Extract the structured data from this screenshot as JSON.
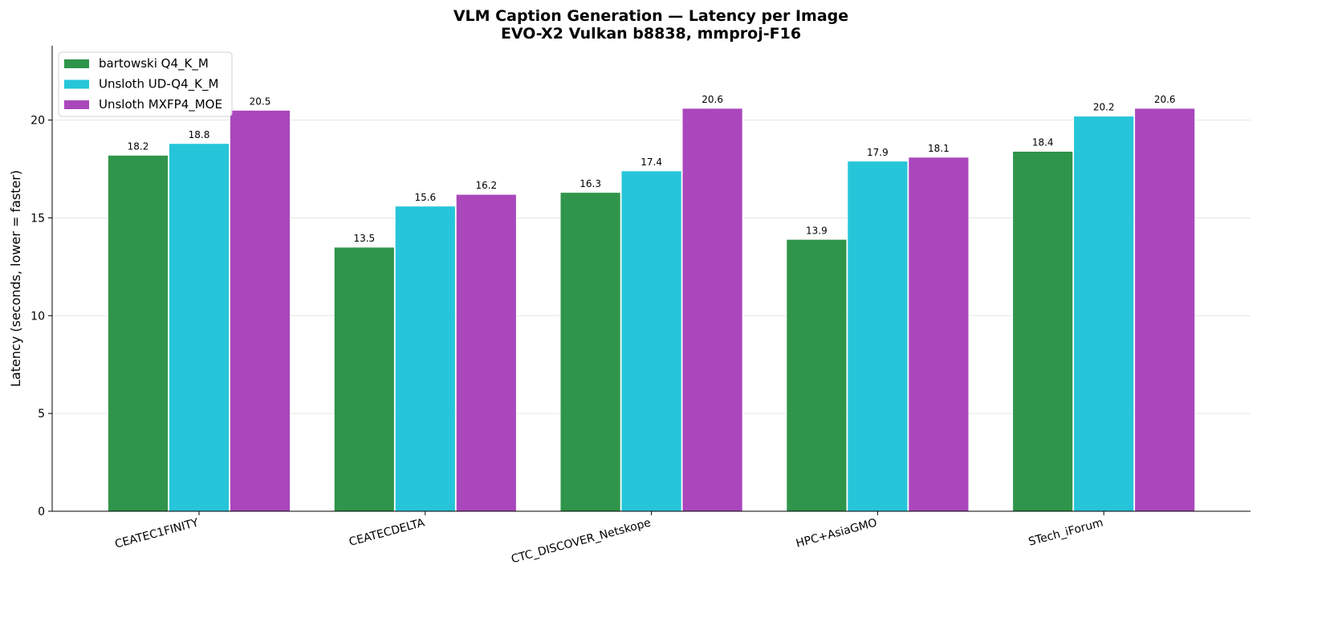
{
  "chart_data": {
    "type": "bar",
    "title": "VLM Caption Generation — Latency per Image",
    "subtitle": "EVO-X2 Vulkan b8838, mmproj-F16",
    "xlabel": "",
    "ylabel": "Latency (seconds, lower = faster)",
    "ylim": [
      0,
      23.8
    ],
    "yticks": [
      0,
      5,
      10,
      15,
      20
    ],
    "grid": "y",
    "legend_position": "top-left",
    "categories": [
      "CEATEC1FINITY",
      "CEATECDELTA",
      "CTC_DISCOVER_Netskope",
      "HPC+AsiaGMO",
      "STech_iForum"
    ],
    "series": [
      {
        "name": "bartowski Q4_K_M",
        "color": "#2f954a",
        "values": [
          18.2,
          13.5,
          16.3,
          13.9,
          18.4
        ]
      },
      {
        "name": "Unsloth UD-Q4_K_M",
        "color": "#26c5d9",
        "values": [
          18.8,
          15.6,
          17.4,
          17.9,
          20.2
        ]
      },
      {
        "name": "Unsloth MXFP4_MOE",
        "color": "#aa47bc",
        "values": [
          20.5,
          16.2,
          20.6,
          18.1,
          20.6
        ]
      }
    ]
  }
}
